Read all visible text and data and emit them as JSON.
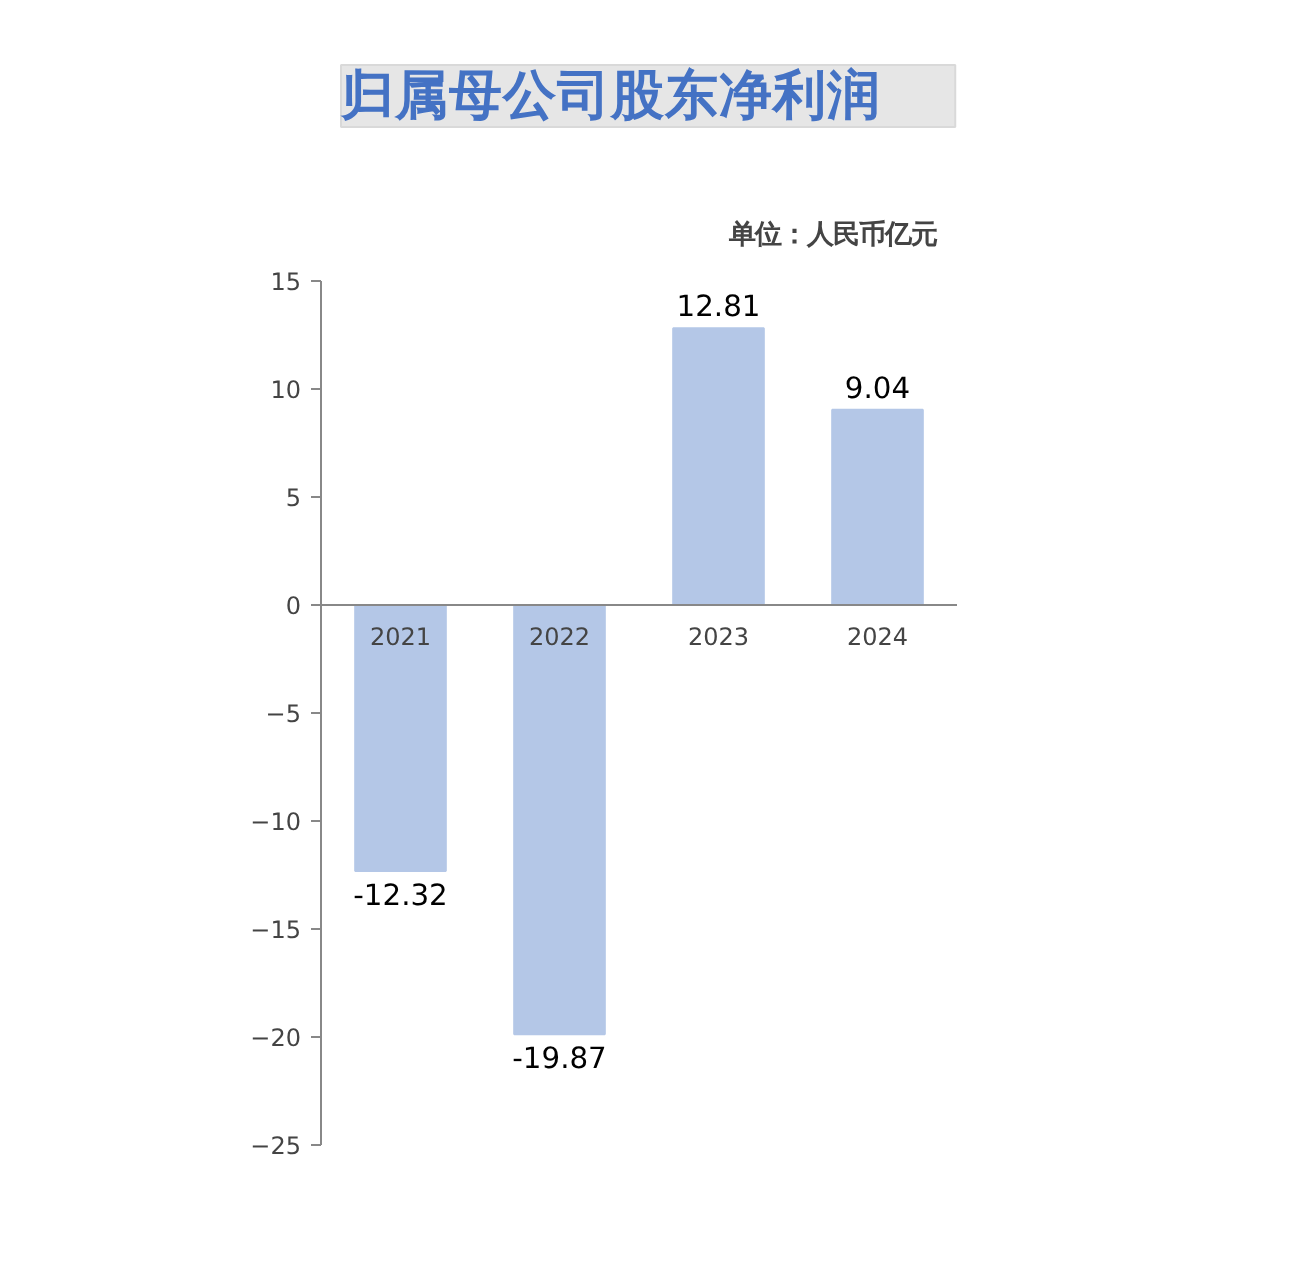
{
  "chart_data": {
    "type": "bar",
    "title": "归属母公司股东净利润",
    "subtitle": "单位：人民币亿元",
    "categories": [
      "2021",
      "2022",
      "2023",
      "2024"
    ],
    "values": [
      -12.32,
      -19.87,
      12.81,
      9.04
    ],
    "color": "#b4c7e7",
    "ylim": [
      -25,
      15
    ],
    "yticks": [
      -25,
      -20,
      -15,
      -10,
      -5,
      0,
      5,
      10,
      15
    ],
    "data_labels": true,
    "grid": false
  }
}
